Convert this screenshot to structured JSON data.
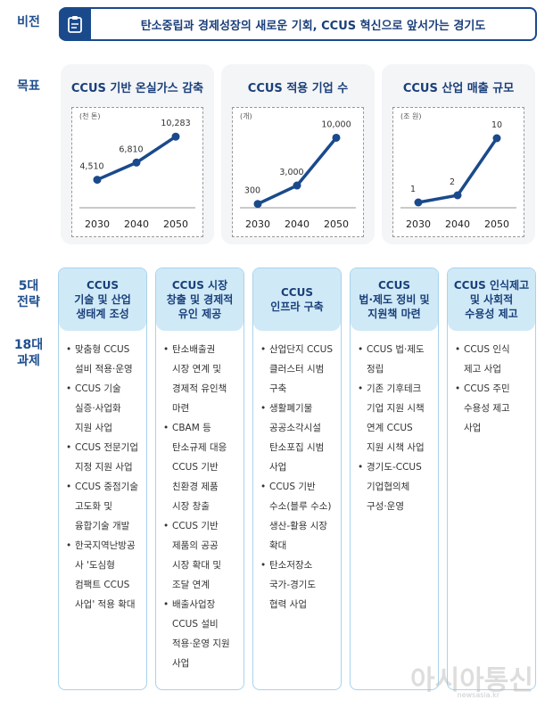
{
  "labels": {
    "vision": "비전",
    "goal": "목표",
    "strategy": "5대\n전략",
    "tasks": "18대\n과제"
  },
  "vision": {
    "icon": "clipboard-icon",
    "text": "탄소중립과 경제성장의 새로운 기회, CCUS 혁신으로 앞서가는 경기도"
  },
  "chart_data": [
    {
      "type": "line",
      "title": "CCUS 기반 온실가스 감축",
      "unit": "(천 톤)",
      "categories": [
        "2030",
        "2040",
        "2050"
      ],
      "values": [
        4510,
        6810,
        10283
      ],
      "labels": [
        "4,510",
        "6,810",
        "10,283"
      ],
      "ylim": [
        1000,
        11500
      ]
    },
    {
      "type": "line",
      "title": "CCUS 적용 기업 수",
      "unit": "(개)",
      "categories": [
        "2030",
        "2040",
        "2050"
      ],
      "values": [
        300,
        3000,
        10000
      ],
      "labels": [
        "300",
        "3,000",
        "10,000"
      ],
      "ylim": [
        0,
        11500
      ]
    },
    {
      "type": "line",
      "title": "CCUS 산업 매출 규모",
      "unit": "(조 원)",
      "categories": [
        "2030",
        "2040",
        "2050"
      ],
      "values": [
        1,
        2,
        10
      ],
      "labels": [
        "1",
        "2",
        "10"
      ],
      "ylim": [
        0.5,
        11.5
      ]
    }
  ],
  "columns": [
    {
      "title": "CCUS\n기술 및 산업\n생태계 조성",
      "items": [
        "맞춤형 CCUS\n설비 적용·운영",
        "CCUS 기술\n실증·사업화\n지원 사업",
        "CCUS 전문기업\n지정 지원 사업",
        "CCUS 중점기술\n고도화 및\n융합기술 개발",
        "한국지역난방공\n사 '도심형\n컴팩트 CCUS\n사업' 적용 확대"
      ]
    },
    {
      "title": "CCUS 시장\n창출 및 경제적\n유인 제공",
      "items": [
        "탄소배출권\n시장 연계 및\n경제적 유인책\n마련",
        "CBAM 등\n탄소규제 대응\nCCUS 기반\n친환경 제품\n시장 창출",
        "CCUS 기반\n제품의 공공\n시장 확대 및\n조달 연계",
        "배출사업장\nCCUS 설비\n적용·운영 지원\n사업"
      ]
    },
    {
      "title": "CCUS\n인프라 구축",
      "items": [
        "산업단지 CCUS\n클러스터 시범\n구축",
        "생활폐기물\n공공소각시설\n탄소포집 시범\n사업",
        "CCUS 기반\n수소(블루 수소)\n생산-활용 시장\n확대",
        "탄소저장소\n국가-경기도\n협력 사업"
      ]
    },
    {
      "title": "CCUS\n법·제도 정비 및\n지원책 마련",
      "items": [
        "CCUS 법·제도\n정립",
        "기존 기후테크\n기업 지원 시책\n연계 CCUS\n지원 시책 사업",
        "경기도-CCUS\n기업협의체\n구성·운영"
      ]
    },
    {
      "title": "CCUS 인식제고\n및 사회적\n수용성 제고",
      "items": [
        "CCUS 인식\n제고 사업",
        "CCUS 주민\n수용성 제고\n사업"
      ]
    }
  ],
  "watermark": {
    "text": "아시아통신",
    "sub": "newsasia.kr"
  },
  "colors": {
    "navy": "#1a4a8c",
    "light_blue": "#cfe9f7"
  }
}
